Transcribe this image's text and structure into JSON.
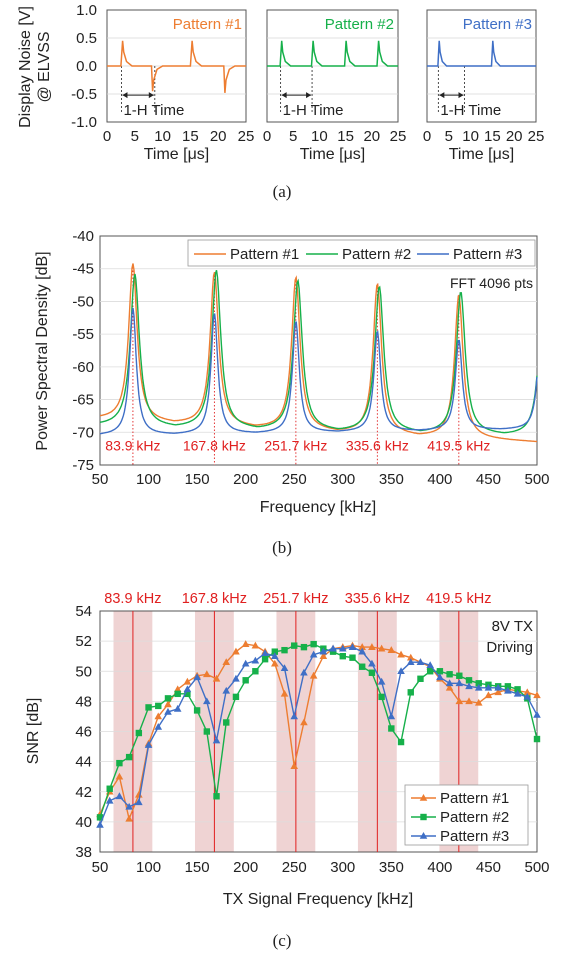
{
  "colors": {
    "p1": "#ed7d31",
    "p2": "#16b04a",
    "p3": "#3f6fc6",
    "red": "#e02020",
    "band": "#efd3d3"
  },
  "chart_data": [
    {
      "id": "a",
      "type": "line",
      "caption": "(a)",
      "ylabel": "Display Noise [V]",
      "ylabel2": "@ ELVSS",
      "xlabel": "Time [μs]",
      "xlim": [
        0,
        25
      ],
      "ylim": [
        -1.0,
        1.0
      ],
      "xticks": [
        "0",
        "5",
        "10",
        "15",
        "20",
        "25"
      ],
      "yticks": [
        "1.0",
        "0.5",
        "0.0",
        "-0.5",
        "-1.0"
      ],
      "annotation": "1-H Time",
      "panels": [
        {
          "title": "Pattern #1",
          "color": "#ed7d31",
          "x": [
            0,
            2.5,
            2.8,
            3.0,
            3.5,
            4.5,
            8.0,
            8.2,
            8.4,
            9.0,
            10,
            15.0,
            15.3,
            15.5,
            16,
            17,
            21.0,
            21.2,
            21.4,
            22,
            23,
            25
          ],
          "y": [
            0,
            0,
            0.45,
            0.25,
            0.08,
            0,
            0,
            -0.45,
            -0.25,
            -0.06,
            0,
            0,
            0.45,
            0.25,
            0.08,
            0,
            0,
            -0.48,
            -0.25,
            -0.06,
            0,
            0
          ]
        },
        {
          "title": "Pattern #2",
          "color": "#16b04a",
          "x": [
            0,
            2.5,
            2.8,
            3.0,
            3.5,
            4.5,
            8.5,
            8.8,
            9.0,
            9.5,
            10.5,
            14.8,
            15.1,
            15.3,
            15.8,
            16.8,
            21.0,
            21.3,
            21.5,
            22,
            23,
            25
          ],
          "y": [
            0,
            0,
            0.45,
            0.25,
            0.08,
            0,
            0,
            0.45,
            0.25,
            0.08,
            0,
            0,
            0.45,
            0.25,
            0.08,
            0,
            0,
            0.45,
            0.25,
            0.08,
            0,
            0
          ]
        },
        {
          "title": "Pattern #3",
          "color": "#3f6fc6",
          "x": [
            0,
            2.5,
            2.8,
            3.0,
            3.5,
            4.5,
            14.8,
            15.1,
            15.3,
            15.8,
            16.8,
            25
          ],
          "y": [
            0,
            0,
            0.45,
            0.25,
            0.08,
            0,
            0,
            0.45,
            0.25,
            0.08,
            0,
            0
          ]
        }
      ]
    },
    {
      "id": "b",
      "type": "line",
      "caption": "(b)",
      "ylabel": "Power Spectral Density [dB]",
      "xlabel": "Frequency [kHz]",
      "xlim": [
        50,
        500
      ],
      "ylim": [
        -75,
        -40
      ],
      "xticks": [
        "50",
        "100",
        "150",
        "200",
        "250",
        "300",
        "350",
        "400",
        "450",
        "500"
      ],
      "yticks": [
        "-40",
        "-45",
        "-50",
        "-55",
        "-60",
        "-65",
        "-70",
        "-75"
      ],
      "note": "FFT 4096 pts",
      "peak_labels": [
        "83.9 kHz",
        "167.8 kHz",
        "251.7 kHz",
        "335.6 kHz",
        "419.5 kHz"
      ],
      "peak_x": [
        83.9,
        167.8,
        251.7,
        335.6,
        419.5
      ],
      "series": [
        {
          "name": "Pattern #1",
          "base": -68.0,
          "peaks": [
            -44.2,
            -45.5,
            -46.3,
            -47.3,
            -49.0
          ],
          "tilt": -3.5
        },
        {
          "name": "Pattern #2",
          "base": -69.0,
          "peaks": [
            -45.8,
            -45.2,
            -46.8,
            -47.7,
            -48.5
          ],
          "tilt": -1.5
        },
        {
          "name": "Pattern #3",
          "base": -70.5,
          "peaks": [
            -51.0,
            -51.8,
            -53.0,
            -54.5,
            -55.8
          ],
          "tilt": 1.0
        }
      ]
    },
    {
      "id": "c",
      "type": "line",
      "caption": "(c)",
      "ylabel": "SNR [dB]",
      "xlabel": "TX Signal Frequency [kHz]",
      "xlim": [
        50,
        500
      ],
      "ylim": [
        38,
        54
      ],
      "xticks": [
        "50",
        "100",
        "150",
        "200",
        "250",
        "300",
        "350",
        "400",
        "450",
        "500"
      ],
      "yticks": [
        "54",
        "52",
        "50",
        "48",
        "46",
        "44",
        "42",
        "40",
        "38"
      ],
      "note1": "8V TX",
      "note2": "Driving",
      "band_labels": [
        "83.9 kHz",
        "167.8 kHz",
        "251.7 kHz",
        "335.6 kHz",
        "419.5 kHz"
      ],
      "band_x": [
        83.9,
        167.8,
        251.7,
        335.6,
        419.5
      ],
      "x": [
        50,
        60,
        70,
        80,
        90,
        100,
        110,
        120,
        130,
        140,
        150,
        160,
        170,
        180,
        190,
        200,
        210,
        220,
        230,
        240,
        250,
        260,
        270,
        280,
        290,
        300,
        310,
        320,
        330,
        340,
        350,
        360,
        370,
        380,
        390,
        400,
        410,
        420,
        430,
        440,
        450,
        460,
        470,
        480,
        490,
        500
      ],
      "series": [
        {
          "name": "Pattern #1",
          "marker": "triangle",
          "values": [
            40.5,
            42.0,
            43.0,
            40.2,
            41.8,
            45.2,
            47.0,
            47.8,
            48.8,
            49.3,
            49.7,
            49.8,
            49.5,
            50.6,
            51.3,
            51.8,
            51.7,
            51.3,
            50.5,
            48.5,
            43.7,
            46.6,
            49.7,
            51.0,
            51.5,
            51.6,
            51.7,
            51.6,
            51.6,
            51.5,
            51.4,
            51.1,
            50.9,
            50.6,
            50.3,
            49.5,
            48.9,
            48.0,
            48.0,
            47.9,
            48.4,
            48.6,
            48.8,
            48.7,
            48.6,
            48.4
          ]
        },
        {
          "name": "Pattern #2",
          "marker": "square",
          "values": [
            40.3,
            42.2,
            43.9,
            44.3,
            45.9,
            47.6,
            47.7,
            48.2,
            48.5,
            48.5,
            47.4,
            46.0,
            41.7,
            46.6,
            48.3,
            49.4,
            50.0,
            50.8,
            51.3,
            51.4,
            51.7,
            51.6,
            51.8,
            51.5,
            51.3,
            51.0,
            50.9,
            50.3,
            49.9,
            48.3,
            46.2,
            45.3,
            48.6,
            49.5,
            50.0,
            50.0,
            49.8,
            49.7,
            49.4,
            49.2,
            49.1,
            49.0,
            49.0,
            48.8,
            48.2,
            45.5
          ]
        },
        {
          "name": "Pattern #3",
          "marker": "triangle",
          "values": [
            39.8,
            41.4,
            41.7,
            41.0,
            41.3,
            45.1,
            46.3,
            47.3,
            47.5,
            48.8,
            49.6,
            48.0,
            45.4,
            48.7,
            49.5,
            50.5,
            50.7,
            51.2,
            51.0,
            50.2,
            47.0,
            49.9,
            51.1,
            51.3,
            51.5,
            51.5,
            51.6,
            51.3,
            50.5,
            49.3,
            47.0,
            50.0,
            50.6,
            50.6,
            50.4,
            49.6,
            49.2,
            49.2,
            49.0,
            48.9,
            48.9,
            48.9,
            48.7,
            48.5,
            48.3,
            47.1
          ]
        }
      ]
    }
  ]
}
